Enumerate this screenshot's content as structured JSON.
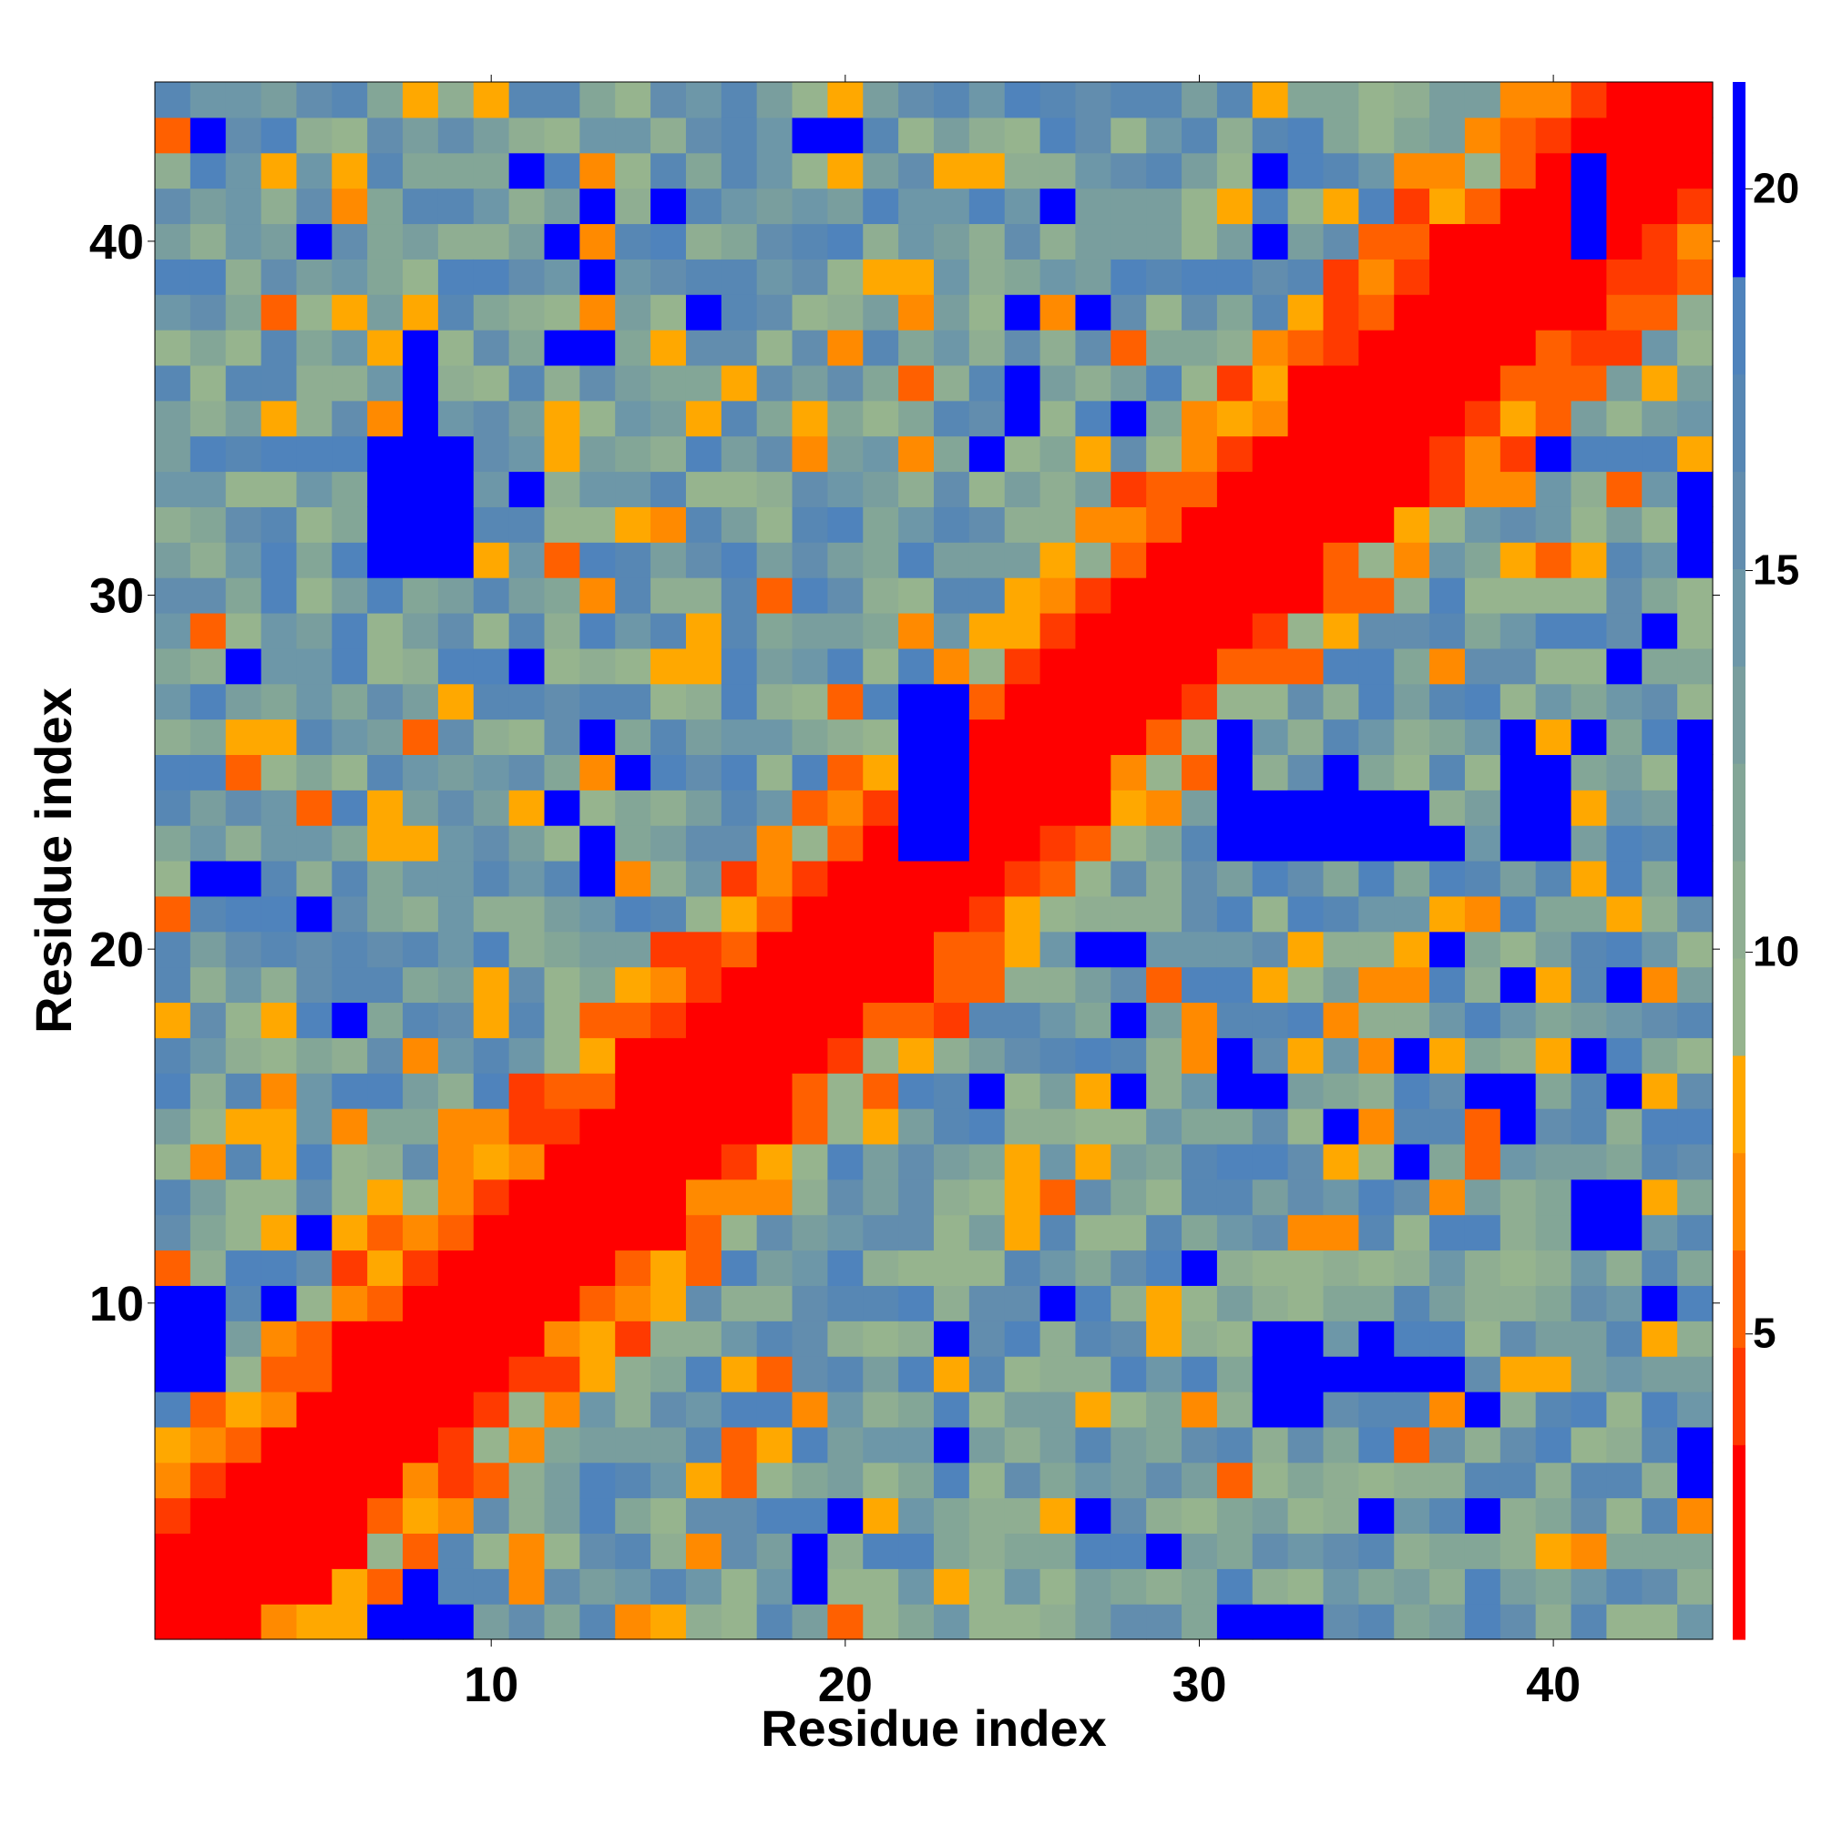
{
  "chart_data": {
    "type": "heatmap",
    "title": "",
    "xlabel": "Residue index",
    "ylabel": "Residue index",
    "n": 44,
    "xlim": [
      0.5,
      44.5
    ],
    "ylim": [
      0.5,
      44.5
    ],
    "x_ticks": [
      10,
      20,
      30,
      40
    ],
    "y_ticks": [
      10,
      20,
      30,
      40
    ],
    "grid": false,
    "colorbar": {
      "ticks": [
        5,
        10,
        15,
        20
      ],
      "range": [
        1,
        21.4
      ],
      "colors": [
        "#ff0000",
        "#ff0000",
        "#ff3a00",
        "#ff6000",
        "#ff8a00",
        "#ffa800",
        "#96b48e",
        "#8fae92",
        "#83a697",
        "#799e9e",
        "#6d97a8",
        "#628dae",
        "#5787b4",
        "#4f83bc",
        "#0000ff",
        "#0000ff"
      ]
    },
    "blue_value": 21.4,
    "diagonal": {
      "width": 2.3,
      "value": 1.5
    },
    "blue_regions": [
      [
        1,
        2,
        8,
        10
      ],
      [
        7,
        9,
        1,
        1
      ],
      [
        8,
        8,
        1,
        2
      ],
      [
        7,
        9,
        31,
        34
      ],
      [
        8,
        8,
        35,
        37
      ],
      [
        11,
        11,
        33,
        33
      ],
      [
        22,
        23,
        23,
        24
      ],
      [
        22,
        22,
        23,
        27
      ],
      [
        23,
        23,
        24,
        27
      ],
      [
        24,
        24,
        34,
        34
      ],
      [
        25,
        25,
        35,
        36
      ],
      [
        24,
        24,
        16,
        16
      ],
      [
        31,
        32,
        1,
        1
      ],
      [
        31,
        31,
        16,
        17
      ],
      [
        32,
        32,
        16,
        16
      ],
      [
        32,
        33,
        7,
        9
      ],
      [
        33,
        33,
        1,
        1
      ],
      [
        35,
        35,
        8,
        9
      ],
      [
        36,
        37,
        8,
        8
      ],
      [
        31,
        31,
        23,
        26
      ],
      [
        32,
        33,
        23,
        24
      ],
      [
        34,
        34,
        23,
        25
      ],
      [
        35,
        36,
        23,
        24
      ],
      [
        37,
        37,
        23,
        23
      ],
      [
        39,
        40,
        23,
        25
      ],
      [
        41,
        42,
        12,
        13
      ],
      [
        44,
        44,
        23,
        26
      ],
      [
        44,
        44,
        31,
        32
      ],
      [
        42,
        42,
        28,
        28
      ],
      [
        43,
        43,
        29,
        29
      ],
      [
        44,
        44,
        22,
        26
      ],
      [
        44,
        44,
        31,
        33
      ],
      [
        41,
        41,
        40,
        42
      ]
    ],
    "seed": 7
  }
}
